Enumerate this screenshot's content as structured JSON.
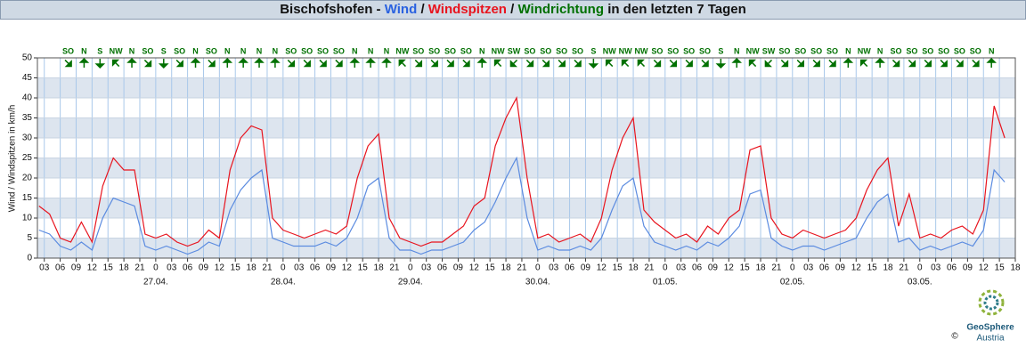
{
  "chart_data": {
    "type": "line",
    "title_prefix": "Bischofshofen -",
    "separator": "/",
    "direction_name": "Windrichtung",
    "title_suffix": "in den letzten 7 Tagen",
    "ylabel": "Wind / Windspitzen in km/h",
    "copyright": "©",
    "logo_name": "GeoSphere",
    "logo_sub": "Austria",
    "direction_color": "#007000",
    "xlim": [
      1.7,
      186
    ],
    "ylim": [
      0,
      50
    ],
    "yticks": [
      0,
      5,
      10,
      15,
      20,
      25,
      30,
      35,
      40,
      45,
      50
    ],
    "bands": true,
    "grid": true,
    "xticks": [
      {
        "value": 3,
        "label": "03"
      },
      {
        "value": 6,
        "label": "06"
      },
      {
        "value": 9,
        "label": "09"
      },
      {
        "value": 12,
        "label": "12"
      },
      {
        "value": 15,
        "label": "15"
      },
      {
        "value": 18,
        "label": "18"
      },
      {
        "value": 21,
        "label": "21"
      },
      {
        "value": 24,
        "label": "0"
      },
      {
        "value": 27,
        "label": "03"
      },
      {
        "value": 30,
        "label": "06"
      },
      {
        "value": 33,
        "label": "09"
      },
      {
        "value": 36,
        "label": "12"
      },
      {
        "value": 39,
        "label": "15"
      },
      {
        "value": 42,
        "label": "18"
      },
      {
        "value": 45,
        "label": "21"
      },
      {
        "value": 48,
        "label": "0"
      },
      {
        "value": 51,
        "label": "03"
      },
      {
        "value": 54,
        "label": "06"
      },
      {
        "value": 57,
        "label": "09"
      },
      {
        "value": 60,
        "label": "12"
      },
      {
        "value": 63,
        "label": "15"
      },
      {
        "value": 66,
        "label": "18"
      },
      {
        "value": 69,
        "label": "21"
      },
      {
        "value": 72,
        "label": "0"
      },
      {
        "value": 75,
        "label": "03"
      },
      {
        "value": 78,
        "label": "06"
      },
      {
        "value": 81,
        "label": "09"
      },
      {
        "value": 84,
        "label": "12"
      },
      {
        "value": 87,
        "label": "15"
      },
      {
        "value": 90,
        "label": "18"
      },
      {
        "value": 93,
        "label": "21"
      },
      {
        "value": 96,
        "label": "0"
      },
      {
        "value": 99,
        "label": "03"
      },
      {
        "value": 102,
        "label": "06"
      },
      {
        "value": 105,
        "label": "09"
      },
      {
        "value": 108,
        "label": "12"
      },
      {
        "value": 111,
        "label": "15"
      },
      {
        "value": 114,
        "label": "18"
      },
      {
        "value": 117,
        "label": "21"
      },
      {
        "value": 120,
        "label": "0"
      },
      {
        "value": 123,
        "label": "03"
      },
      {
        "value": 126,
        "label": "06"
      },
      {
        "value": 129,
        "label": "09"
      },
      {
        "value": 132,
        "label": "12"
      },
      {
        "value": 135,
        "label": "15"
      },
      {
        "value": 138,
        "label": "18"
      },
      {
        "value": 141,
        "label": "21"
      },
      {
        "value": 144,
        "label": "0"
      },
      {
        "value": 147,
        "label": "03"
      },
      {
        "value": 150,
        "label": "06"
      },
      {
        "value": 153,
        "label": "09"
      },
      {
        "value": 156,
        "label": "12"
      },
      {
        "value": 159,
        "label": "15"
      },
      {
        "value": 162,
        "label": "18"
      },
      {
        "value": 165,
        "label": "21"
      },
      {
        "value": 168,
        "label": "0"
      },
      {
        "value": 171,
        "label": "03"
      },
      {
        "value": 174,
        "label": "06"
      },
      {
        "value": 177,
        "label": "09"
      },
      {
        "value": 180,
        "label": "12"
      },
      {
        "value": 183,
        "label": "15"
      },
      {
        "value": 186,
        "label": "18"
      }
    ],
    "day_labels": [
      {
        "value": 24,
        "label": "27.04."
      },
      {
        "value": 48,
        "label": "28.04."
      },
      {
        "value": 72,
        "label": "29.04."
      },
      {
        "value": 96,
        "label": "30.04."
      },
      {
        "value": 120,
        "label": "01.05."
      },
      {
        "value": 144,
        "label": "02.05."
      },
      {
        "value": 168,
        "label": "03.05."
      }
    ],
    "directions": [
      "SO",
      "N",
      "S",
      "NW",
      "N",
      "SO",
      "S",
      "SO",
      "N",
      "SO",
      "N",
      "N",
      "N",
      "N",
      "SO",
      "SO",
      "SO",
      "SO",
      "N",
      "N",
      "N",
      "NW",
      "SO",
      "SO",
      "SO",
      "SO",
      "N",
      "NW",
      "SW",
      "SO",
      "SO",
      "SO",
      "SO",
      "S",
      "NW",
      "NW",
      "NW",
      "SO",
      "SO",
      "SO",
      "SO",
      "S",
      "N",
      "NW",
      "SW",
      "SO",
      "SO",
      "SO",
      "SO",
      "N",
      "NW",
      "N",
      "SO",
      "SO",
      "SO",
      "SO",
      "SO",
      "SO",
      "N"
    ],
    "x": [
      2,
      4,
      6,
      8,
      10,
      12,
      14,
      16,
      18,
      20,
      22,
      24,
      26,
      28,
      30,
      32,
      34,
      36,
      38,
      40,
      42,
      44,
      46,
      48,
      50,
      52,
      54,
      56,
      58,
      60,
      62,
      64,
      66,
      68,
      70,
      72,
      74,
      76,
      78,
      80,
      82,
      84,
      86,
      88,
      90,
      92,
      94,
      96,
      98,
      100,
      102,
      104,
      106,
      108,
      110,
      112,
      114,
      116,
      118,
      120,
      122,
      124,
      126,
      128,
      130,
      132,
      134,
      136,
      138,
      140,
      142,
      144,
      146,
      148,
      150,
      152,
      154,
      156,
      158,
      160,
      162,
      164,
      166,
      168,
      170,
      172,
      174,
      176,
      178,
      180,
      182,
      184
    ],
    "series": [
      {
        "name": "Wind",
        "color": "#5b8be0",
        "values": [
          7,
          6,
          3,
          2,
          4,
          2,
          10,
          15,
          14,
          13,
          3,
          2,
          3,
          2,
          1,
          2,
          4,
          3,
          12,
          17,
          20,
          22,
          5,
          4,
          3,
          3,
          3,
          4,
          3,
          5,
          10,
          18,
          20,
          5,
          2,
          2,
          1,
          2,
          2,
          3,
          4,
          7,
          9,
          14,
          20,
          25,
          10,
          2,
          3,
          2,
          2,
          3,
          2,
          5,
          12,
          18,
          20,
          8,
          4,
          3,
          2,
          3,
          2,
          4,
          3,
          5,
          8,
          16,
          17,
          5,
          3,
          2,
          3,
          3,
          2,
          3,
          4,
          5,
          10,
          14,
          16,
          4,
          5,
          2,
          3,
          2,
          3,
          4,
          3,
          7,
          22,
          19
        ]
      },
      {
        "name": "Windspitzen",
        "color": "#e8141e",
        "values": [
          13,
          11,
          5,
          4,
          9,
          4,
          18,
          25,
          22,
          22,
          6,
          5,
          6,
          4,
          3,
          4,
          7,
          5,
          22,
          30,
          33,
          32,
          10,
          7,
          6,
          5,
          6,
          7,
          6,
          8,
          20,
          28,
          31,
          10,
          5,
          4,
          3,
          4,
          4,
          6,
          8,
          13,
          15,
          28,
          35,
          40,
          20,
          5,
          6,
          4,
          5,
          6,
          4,
          10,
          22,
          30,
          35,
          12,
          9,
          7,
          5,
          6,
          4,
          8,
          6,
          10,
          12,
          27,
          28,
          10,
          6,
          5,
          7,
          6,
          5,
          6,
          7,
          10,
          17,
          22,
          25,
          8,
          16,
          5,
          6,
          5,
          7,
          8,
          6,
          12,
          38,
          30
        ]
      }
    ]
  }
}
